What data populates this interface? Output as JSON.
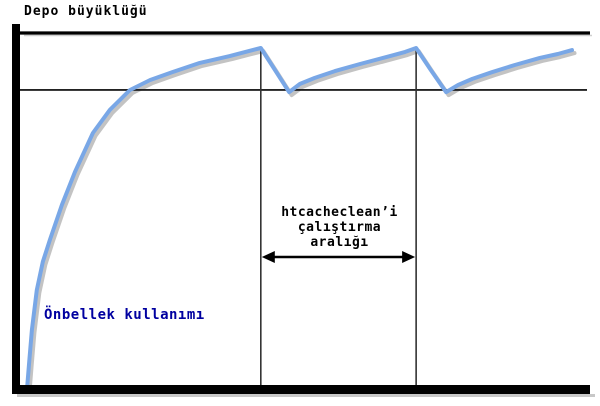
{
  "labels": {
    "y_axis_title": "Depo büyüklüğü",
    "curve_label": "Önbellek kullanımı",
    "interval_annotation": "htcacheclean’i\nçalıştırma\naralığı"
  },
  "colors": {
    "curve": "#79a7e6",
    "curve_shadow": "#b9b9b9",
    "axis": "#000000",
    "axis_shadow": "#c8c8c8",
    "storage_size_line": "#000000",
    "cache_limit_line": "#222222",
    "interval_marker_line": "#333333",
    "arrow": "#000000",
    "curve_label_text": "#0000a0",
    "background": "#ffffff"
  },
  "chart_data": {
    "type": "line",
    "title": "",
    "xlabel": "",
    "ylabel": "Depo büyüklüğü",
    "legend": "none",
    "grid": false,
    "description": "Önbellek kullanımı (cache usage) grows toward the storage size; each htcacheclean run (vertical markers) prunes it back below the limit line; the arrow marks the htcacheclean run interval.",
    "x_units": "time, percent of shown window",
    "y_units": "fraction of storage size (top line = 1.0)",
    "reference_levels": {
      "storage_size": 1.0,
      "cache_limit": 0.84
    },
    "run_markers_t": [
      42.9,
      71.4
    ],
    "interval_arrow": {
      "from_t": 42.9,
      "to_t": 71.4,
      "label": "htcacheclean’i çalıştırma aralığı"
    },
    "series": [
      {
        "name": "Önbellek kullanımı",
        "color": "#79a7e6",
        "points": [
          [
            0,
            0
          ],
          [
            0.4,
            0.076
          ],
          [
            0.9,
            0.166
          ],
          [
            1.8,
            0.278
          ],
          [
            2.9,
            0.357
          ],
          [
            4.2,
            0.419
          ],
          [
            6.4,
            0.517
          ],
          [
            8.8,
            0.61
          ],
          [
            12.1,
            0.719
          ],
          [
            15.2,
            0.784
          ],
          [
            18.9,
            0.84
          ],
          [
            22.6,
            0.868
          ],
          [
            26.6,
            0.89
          ],
          [
            31.7,
            0.916
          ],
          [
            37.2,
            0.935
          ],
          [
            40.6,
            0.949
          ],
          [
            42.9,
            0.958
          ],
          [
            45.5,
            0.896
          ],
          [
            48.1,
            0.834
          ],
          [
            50.1,
            0.857
          ],
          [
            52.8,
            0.874
          ],
          [
            56.5,
            0.893
          ],
          [
            61.1,
            0.913
          ],
          [
            66.6,
            0.935
          ],
          [
            69.4,
            0.947
          ],
          [
            71.4,
            0.958
          ],
          [
            74.1,
            0.896
          ],
          [
            76.9,
            0.834
          ],
          [
            79.1,
            0.854
          ],
          [
            81.7,
            0.871
          ],
          [
            85.3,
            0.89
          ],
          [
            89.5,
            0.91
          ],
          [
            94.1,
            0.93
          ],
          [
            97.4,
            0.941
          ],
          [
            100,
            0.952
          ]
        ]
      }
    ]
  }
}
